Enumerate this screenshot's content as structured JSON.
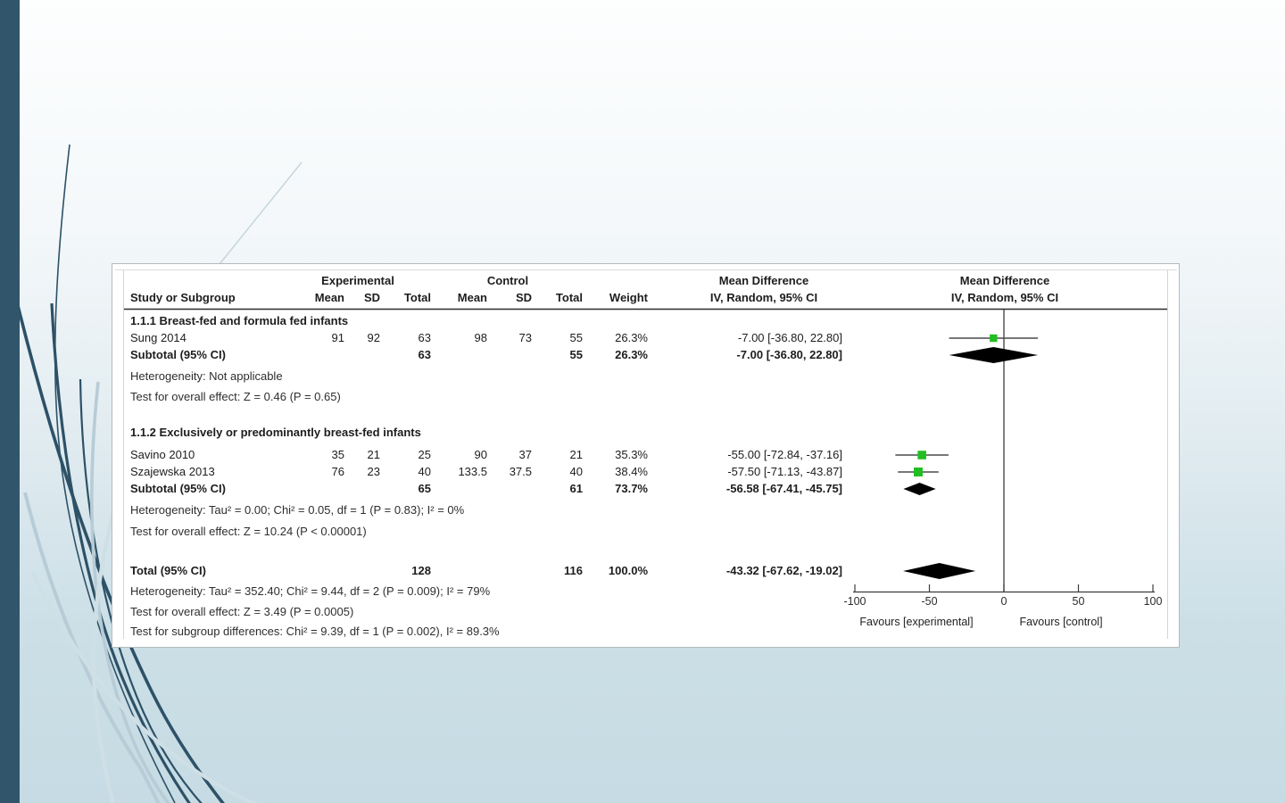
{
  "slide": {
    "left_bar_color": "#31566b",
    "swoosh_dark": "#2d5167",
    "swoosh_light": "#b7ccd6",
    "swoosh_faint": "#cfdfe6",
    "diag_line_color": "#c3d4dc"
  },
  "chart_data": {
    "type": "forest_plot",
    "effect_measure": "Mean Difference",
    "method": "IV, Random, 95% CI",
    "group_headers": {
      "experimental": "Experimental",
      "control": "Control",
      "md_left": "Mean Difference",
      "md_right": "Mean Difference",
      "method_left": "IV, Random, 95% CI",
      "method_right": "IV, Random, 95% CI"
    },
    "column_headers": {
      "study": "Study or Subgroup",
      "mean": "Mean",
      "sd": "SD",
      "total": "Total",
      "mean2": "Mean",
      "sd2": "SD",
      "total2": "Total",
      "weight": "Weight"
    },
    "subgroups": [
      {
        "label": "1.1.1 Breast-fed and formula fed infants",
        "studies": [
          {
            "study": "Sung 2014",
            "exp_mean": "91",
            "exp_sd": "92",
            "exp_total": "63",
            "ctl_mean": "98",
            "ctl_sd": "73",
            "ctl_total": "55",
            "weight": "26.3%",
            "md": -7.0,
            "ci_low": -36.8,
            "ci_high": 22.8,
            "md_label": "-7.00 [-36.80, 22.80]"
          }
        ],
        "subtotal": {
          "label": "Subtotal (95% CI)",
          "exp_total": "63",
          "ctl_total": "55",
          "weight": "26.3%",
          "md": -7.0,
          "ci_low": -36.8,
          "ci_high": 22.8,
          "md_label": "-7.00 [-36.80, 22.80]"
        },
        "heterogeneity": "Heterogeneity: Not applicable",
        "overall_effect": "Test for overall effect: Z = 0.46 (P = 0.65)"
      },
      {
        "label": "1.1.2 Exclusively or predominantly breast-fed infants",
        "studies": [
          {
            "study": "Savino 2010",
            "exp_mean": "35",
            "exp_sd": "21",
            "exp_total": "25",
            "ctl_mean": "90",
            "ctl_sd": "37",
            "ctl_total": "21",
            "weight": "35.3%",
            "md": -55.0,
            "ci_low": -72.84,
            "ci_high": -37.16,
            "md_label": "-55.00 [-72.84, -37.16]"
          },
          {
            "study": "Szajewska 2013",
            "exp_mean": "76",
            "exp_sd": "23",
            "exp_total": "40",
            "ctl_mean": "133.5",
            "ctl_sd": "37.5",
            "ctl_total": "40",
            "weight": "38.4%",
            "md": -57.5,
            "ci_low": -71.13,
            "ci_high": -43.87,
            "md_label": "-57.50 [-71.13, -43.87]"
          }
        ],
        "subtotal": {
          "label": "Subtotal (95% CI)",
          "exp_total": "65",
          "ctl_total": "61",
          "weight": "73.7%",
          "md": -56.58,
          "ci_low": -67.41,
          "ci_high": -45.75,
          "md_label": "-56.58 [-67.41, -45.75]"
        },
        "heterogeneity": "Heterogeneity: Tau² = 0.00; Chi² = 0.05, df = 1 (P = 0.83); I² = 0%",
        "overall_effect": "Test for overall effect: Z = 10.24 (P < 0.00001)"
      }
    ],
    "total": {
      "label": "Total (95% CI)",
      "exp_total": "128",
      "ctl_total": "116",
      "weight": "100.0%",
      "md": -43.32,
      "ci_low": -67.62,
      "ci_high": -19.02,
      "md_label": "-43.32 [-67.62, -19.02]"
    },
    "footer_lines": [
      "Heterogeneity: Tau² = 352.40; Chi² = 9.44, df = 2 (P = 0.009); I² = 79%",
      "Test for overall effect: Z = 3.49 (P = 0.0005)",
      "Test for subgroup differences: Chi² = 9.39, df = 1 (P = 0.002), I² = 89.3%"
    ],
    "axis": {
      "min": -100,
      "max": 100,
      "ticks": [
        -100,
        -50,
        0,
        50,
        100
      ],
      "favours_left": "Favours [experimental]",
      "favours_right": "Favours [control]"
    },
    "marker_color": "#22bd22",
    "diamond_color": "#000000",
    "line_color": "#4a4a4a"
  }
}
